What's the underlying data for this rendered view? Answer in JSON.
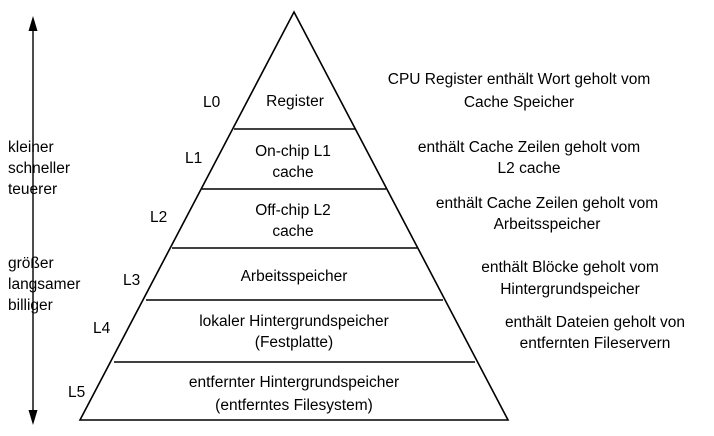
{
  "left_axis": {
    "top_text": [
      "kleiner",
      "schneller",
      "teuerer"
    ],
    "bottom_text": [
      "größer",
      "langsamer",
      "billiger"
    ]
  },
  "levels": [
    {
      "id": "L0",
      "name": [
        "Register"
      ],
      "description": [
        "CPU Register enthält Wort geholt vom",
        "Cache Speicher"
      ]
    },
    {
      "id": "L1",
      "name": [
        "On-chip L1",
        "cache"
      ],
      "description": [
        "enthält Cache Zeilen geholt vom",
        "L2 cache"
      ]
    },
    {
      "id": "L2",
      "name": [
        "Off-chip L2",
        "cache"
      ],
      "description": [
        "enthält Cache Zeilen geholt vom",
        "Arbeitsspeicher"
      ]
    },
    {
      "id": "L3",
      "name": [
        "Arbeitsspeicher"
      ],
      "description": [
        "enthält Blöcke geholt vom",
        "Hintergrundspeicher"
      ]
    },
    {
      "id": "L4",
      "name": [
        "lokaler Hintergrundspeicher",
        "(Festplatte)"
      ],
      "description": [
        "enthält Dateien geholt von",
        "entfernten Fileservern"
      ]
    },
    {
      "id": "L5",
      "name": [
        "entfernter Hintergrundspeicher",
        "(entferntes Filesystem)"
      ],
      "description": []
    }
  ]
}
